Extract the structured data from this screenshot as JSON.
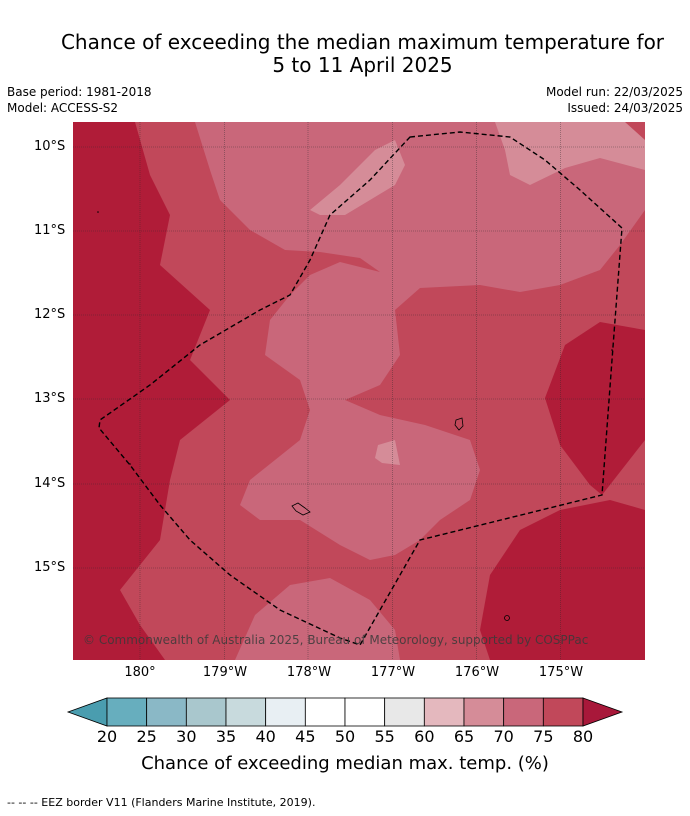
{
  "title": {
    "line1": "Chance of exceeding the median maximum temperature for",
    "line2": "5 to 11 April 2025"
  },
  "meta": {
    "base_period": "Base period: 1981-2018",
    "model": "Model: ACCESS-S2",
    "model_run": "Model run: 22/03/2025",
    "issued": "Issued: 24/03/2025"
  },
  "map": {
    "lat_labels": [
      "10°S",
      "11°S",
      "12°S",
      "13°S",
      "14°S",
      "15°S"
    ],
    "lon_labels": [
      "180°",
      "179°W",
      "178°W",
      "177°W",
      "176°W",
      "175°W"
    ],
    "copyright": "© Commonwealth of Australia 2025, Bureau of Meteorology, supported by COSPPac",
    "colors": {
      "p80": "#b01c38",
      "p75": "#c1485a",
      "p70": "#c9677a",
      "p65": "#d58c98",
      "border": "#000000"
    }
  },
  "colorbar": {
    "ticks": [
      "20",
      "25",
      "30",
      "35",
      "40",
      "45",
      "50",
      "55",
      "60",
      "65",
      "70",
      "75",
      "80"
    ],
    "colors": [
      "#67aebe",
      "#8ab8c6",
      "#a9c7cd",
      "#c8dadd",
      "#e8eff3",
      "#ffffff",
      "#ffffff",
      "#e8e8e8",
      "#e4b8be",
      "#d58c98",
      "#c9677a",
      "#c1485a"
    ],
    "under_color": "#4a9daf",
    "over_color": "#a8183a",
    "label": "Chance of exceeding median max. temp. (%)"
  },
  "footnote": "--  --  -- EEZ border V11 (Flanders Marine Institute, 2019)."
}
